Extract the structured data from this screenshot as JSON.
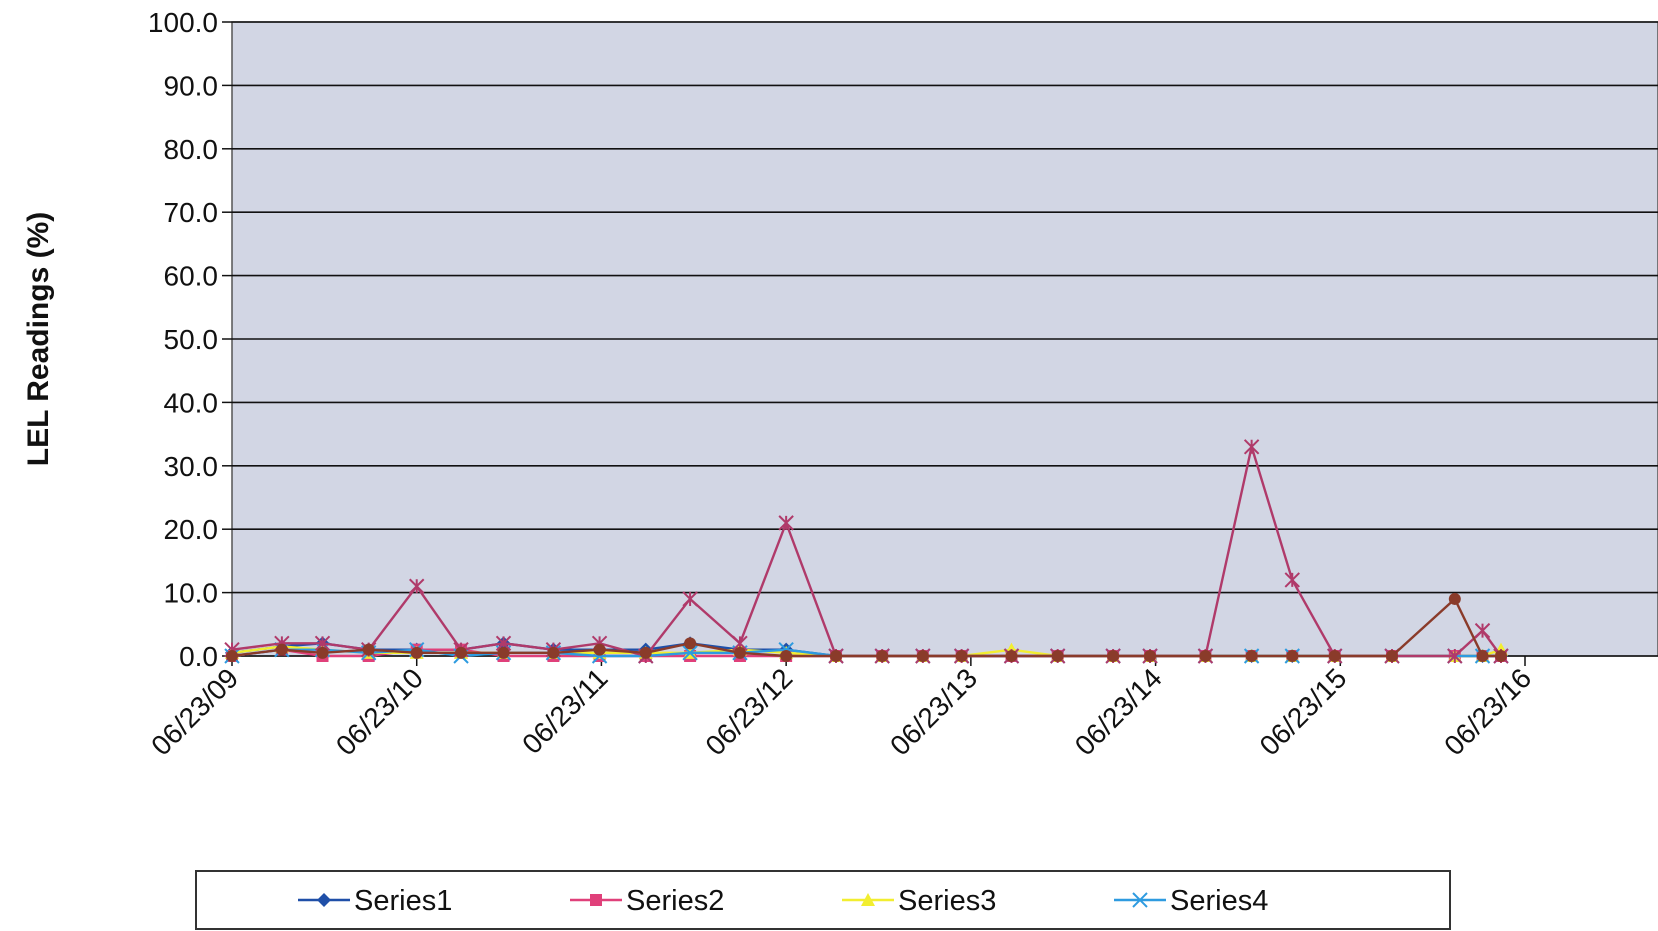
{
  "chart_data": {
    "type": "line",
    "title": "",
    "xlabel": "",
    "ylabel": "LEL Readings (%)",
    "ylim": [
      0,
      100
    ],
    "y_ticks": [
      "0.0",
      "10.0",
      "20.0",
      "30.0",
      "40.0",
      "50.0",
      "60.0",
      "70.0",
      "80.0",
      "90.0",
      "100.0"
    ],
    "x_ticks": [
      "06/23/09",
      "06/23/10",
      "06/23/11",
      "06/23/12",
      "06/23/13",
      "06/23/14",
      "06/23/15",
      "06/23/16"
    ],
    "xlim": [
      2009.48,
      2017.2
    ],
    "grid": true,
    "plot_background": "#d2d6e4",
    "legend_position": "bottom",
    "series": [
      {
        "name": "Series1",
        "color": "#1f4fa8",
        "marker": "diamond",
        "x": [
          2009.48,
          2009.75,
          2009.97,
          2010.22,
          2010.48,
          2010.72,
          2010.95,
          2011.22,
          2011.47,
          2011.72,
          2011.96,
          2012.23,
          2012.48,
          2012.75,
          2013.0,
          2013.22,
          2013.43,
          2013.7,
          2013.95,
          2014.25,
          2014.45,
          2014.75,
          2015.0,
          2015.22,
          2015.45,
          2015.76,
          2016.1,
          2016.25,
          2016.35
        ],
        "y": [
          0.5,
          1.5,
          2.0,
          1.0,
          1.0,
          1.0,
          2.0,
          1.0,
          1.0,
          1.0,
          2.0,
          1.0,
          1.0,
          0.0,
          0.0,
          0.0,
          0.0,
          0.0,
          0.0,
          0.0,
          0.0,
          0.0,
          0.0,
          0.0,
          0.0,
          0.0,
          0.0,
          0.0,
          0.0
        ]
      },
      {
        "name": "Series2",
        "color": "#e0407a",
        "marker": "square",
        "x": [
          2009.48,
          2009.75,
          2009.97,
          2010.22,
          2010.48,
          2010.72,
          2010.95,
          2011.22,
          2011.47,
          2011.72,
          2011.96,
          2012.23,
          2012.48,
          2012.75,
          2013.0,
          2013.22,
          2013.43,
          2013.7,
          2013.95,
          2014.25,
          2014.45,
          2014.75,
          2015.0,
          2015.22,
          2015.45,
          2015.76,
          2016.1,
          2016.25,
          2016.35
        ],
        "y": [
          0.0,
          1.0,
          0.0,
          0.0,
          1.0,
          1.0,
          0.0,
          0.0,
          0.0,
          0.0,
          0.0,
          0.0,
          0.0,
          0.0,
          0.0,
          0.0,
          0.0,
          0.0,
          0.0,
          0.0,
          0.0,
          0.0,
          0.0,
          0.0,
          0.0,
          0.0,
          0.0,
          0.0,
          0.0
        ]
      },
      {
        "name": "Series3",
        "color": "#f2ee30",
        "marker": "triangle",
        "x": [
          2009.48,
          2009.75,
          2009.97,
          2010.22,
          2010.48,
          2010.72,
          2010.95,
          2011.22,
          2011.47,
          2011.72,
          2011.96,
          2012.23,
          2012.48,
          2012.75,
          2013.0,
          2013.22,
          2013.43,
          2013.7,
          2013.95,
          2014.25,
          2014.45,
          2014.75,
          2015.0,
          2015.22,
          2015.45,
          2015.76,
          2016.1,
          2016.25,
          2016.35
        ],
        "y": [
          0.5,
          1.5,
          1.0,
          0.5,
          0.5,
          0.5,
          0.5,
          0.5,
          0.5,
          0.5,
          0.5,
          1.0,
          0.5,
          0.0,
          0.0,
          0.0,
          0.0,
          1.0,
          0.0,
          0.0,
          0.0,
          0.0,
          0.0,
          0.0,
          0.0,
          0.0,
          0.0,
          0.0,
          1.0
        ]
      },
      {
        "name": "Series4",
        "color": "#2e9be0",
        "marker": "x",
        "x": [
          2009.48,
          2009.75,
          2009.97,
          2010.22,
          2010.48,
          2010.72,
          2010.95,
          2011.22,
          2011.47,
          2011.72,
          2011.96,
          2012.23,
          2012.48,
          2012.75,
          2013.0,
          2013.22,
          2013.43,
          2013.7,
          2013.95,
          2014.25,
          2014.45,
          2014.75,
          2015.0,
          2015.22,
          2015.45,
          2015.76,
          2016.1,
          2016.25,
          2016.35
        ],
        "y": [
          0.0,
          1.0,
          1.0,
          0.5,
          1.0,
          0.0,
          0.5,
          0.5,
          0.0,
          0.0,
          0.5,
          0.5,
          1.0,
          0.0,
          0.0,
          0.0,
          0.0,
          0.0,
          0.0,
          0.0,
          0.0,
          0.0,
          0.0,
          0.0,
          0.0,
          0.0,
          0.0,
          0.0,
          0.0
        ]
      },
      {
        "name": "",
        "color": "#b03a6a",
        "marker": "star",
        "x": [
          2009.48,
          2009.75,
          2009.97,
          2010.22,
          2010.48,
          2010.72,
          2010.95,
          2011.22,
          2011.47,
          2011.72,
          2011.96,
          2012.23,
          2012.48,
          2012.75,
          2013.0,
          2013.22,
          2013.43,
          2013.7,
          2013.95,
          2014.25,
          2014.45,
          2014.75,
          2015.0,
          2015.22,
          2015.45,
          2015.76,
          2016.1,
          2016.25,
          2016.35
        ],
        "y": [
          1.0,
          2.0,
          2.0,
          1.0,
          11.0,
          1.0,
          2.0,
          1.0,
          2.0,
          0.0,
          9.0,
          2.0,
          21.0,
          0.0,
          0.0,
          0.0,
          0.0,
          0.0,
          0.0,
          0.0,
          0.0,
          0.0,
          33.0,
          12.0,
          0.0,
          0.0,
          0.0,
          4.0,
          0.0
        ]
      },
      {
        "name": "",
        "color": "#8a3b2a",
        "marker": "circle",
        "x": [
          2009.48,
          2009.75,
          2009.97,
          2010.22,
          2010.48,
          2010.72,
          2010.95,
          2011.22,
          2011.47,
          2011.72,
          2011.96,
          2012.23,
          2012.48,
          2012.75,
          2013.0,
          2013.22,
          2013.43,
          2013.7,
          2013.95,
          2014.25,
          2014.45,
          2014.75,
          2015.0,
          2015.22,
          2015.45,
          2015.76,
          2016.1,
          2016.25,
          2016.35
        ],
        "y": [
          0.0,
          1.0,
          0.5,
          1.0,
          0.5,
          0.5,
          0.5,
          0.5,
          1.0,
          0.5,
          2.0,
          0.5,
          0.0,
          0.0,
          0.0,
          0.0,
          0.0,
          0.0,
          0.0,
          0.0,
          0.0,
          0.0,
          0.0,
          0.0,
          0.0,
          0.0,
          9.0,
          0.0,
          0.0
        ]
      }
    ]
  }
}
